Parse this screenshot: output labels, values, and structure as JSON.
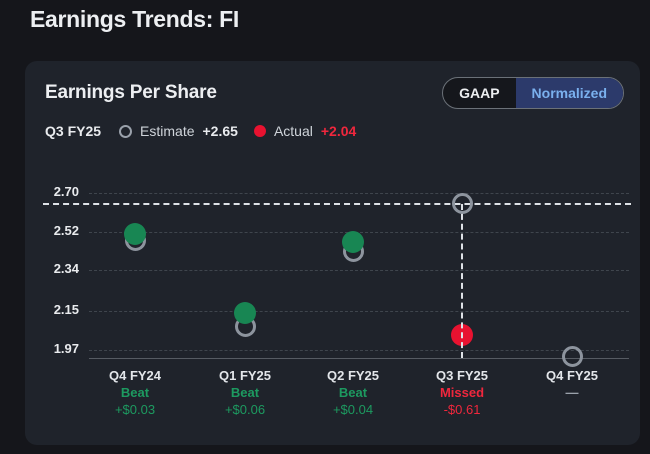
{
  "page": {
    "title": "Earnings Trends: FI"
  },
  "card": {
    "title": "Earnings Per Share",
    "toggle": {
      "options": [
        {
          "label": "GAAP",
          "active": false
        },
        {
          "label": "Normalized",
          "active": true
        }
      ]
    },
    "legend": {
      "period": "Q3 FY25",
      "estimate_label": "Estimate",
      "estimate_value": "+2.65",
      "actual_label": "Actual",
      "actual_value": "+2.04"
    }
  },
  "colors": {
    "page_bg": "#15161b",
    "card_bg": "#1f232b",
    "beat_green": "#188653",
    "beat_text_green": "#1d9a60",
    "miss_red": "#e81230",
    "miss_text_red": "#f0273d",
    "pending_gray": "#9aa1ab",
    "estimate_ring_gray": "#8d949e",
    "toggle_active_bg": "#2c3a6b",
    "toggle_active_text": "#7ab0ee"
  },
  "chart_data": {
    "type": "scatter",
    "title": "Earnings Per Share",
    "categories": [
      "Q4 FY24",
      "Q1 FY25",
      "Q2 FY25",
      "Q3 FY25",
      "Q4 FY25"
    ],
    "series": [
      {
        "name": "Estimate",
        "style": "open-circle",
        "values": [
          2.48,
          2.08,
          2.43,
          2.65,
          1.94
        ]
      },
      {
        "name": "Actual",
        "style": "filled-circle",
        "values": [
          2.51,
          2.14,
          2.47,
          2.04,
          null
        ]
      }
    ],
    "results": [
      {
        "status": "beat",
        "label": "Beat",
        "delta": "+$0.03"
      },
      {
        "status": "beat",
        "label": "Beat",
        "delta": "+$0.06"
      },
      {
        "status": "beat",
        "label": "Beat",
        "delta": "+$0.04"
      },
      {
        "status": "missed",
        "label": "Missed",
        "delta": "-$0.61"
      },
      {
        "status": "pending",
        "label": "—",
        "delta": ""
      }
    ],
    "y_tick_labels": [
      "2.70",
      "2.52",
      "2.34",
      "2.15",
      "1.97"
    ],
    "ylim": [
      1.88,
      2.78
    ],
    "reference_line": 2.65,
    "reference_series": "Estimate",
    "highlight_index": 3,
    "grid": true,
    "legend_position": "top"
  }
}
